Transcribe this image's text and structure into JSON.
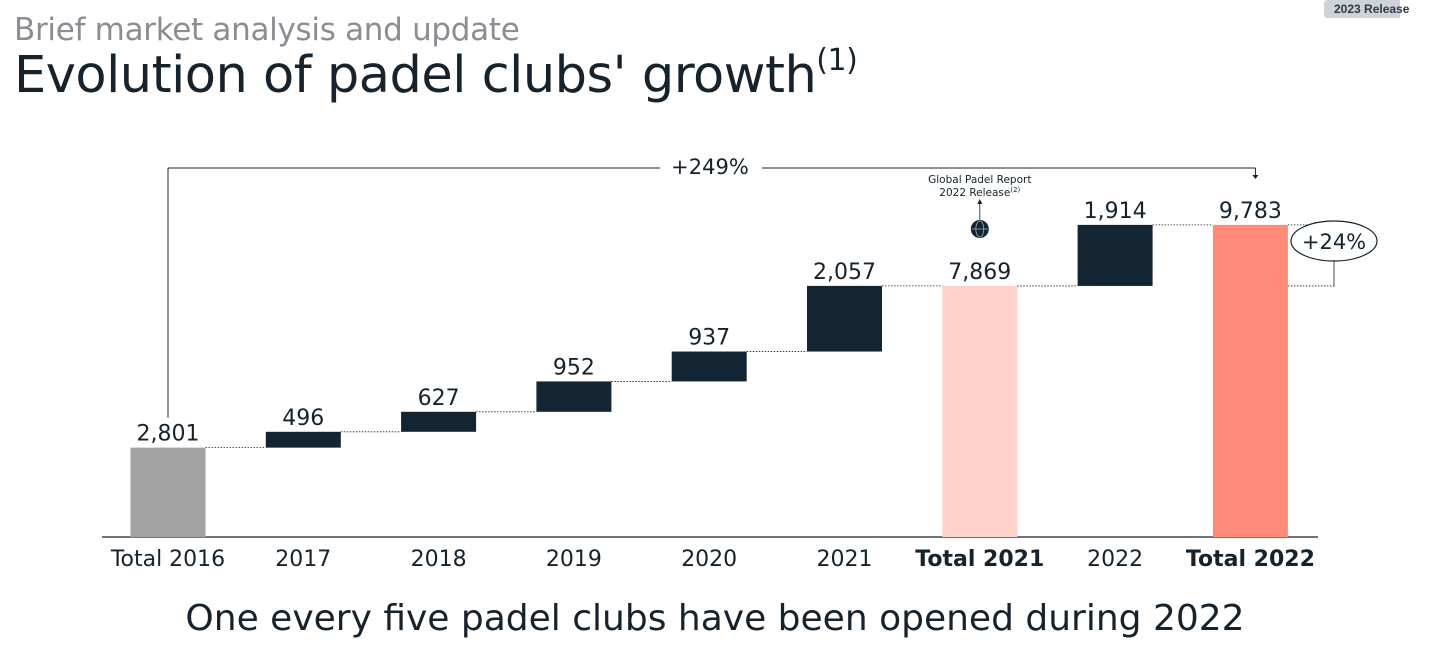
{
  "badge": "2023 Release",
  "header": {
    "subtitle": "Brief market analysis and update",
    "title": "Evolution of padel clubs' growth",
    "title_note": "(1)"
  },
  "footer": "One every five padel clubs have been opened during 2022",
  "chart_data": {
    "type": "bar",
    "subtype": "waterfall",
    "categories": [
      "Total 2016",
      "2017",
      "2018",
      "2019",
      "2020",
      "2021",
      "Total 2021",
      "2022",
      "Total 2022"
    ],
    "values": [
      2801,
      496,
      627,
      952,
      937,
      2057,
      7869,
      1914,
      9783
    ],
    "value_labels": [
      "2,801",
      "496",
      "627",
      "952",
      "937",
      "2,057",
      "7,869",
      "1,914",
      "9,783"
    ],
    "kinds": [
      "total",
      "increment",
      "increment",
      "increment",
      "increment",
      "increment",
      "total",
      "increment",
      "total"
    ],
    "bold_categories": [
      "Total 2021",
      "Total 2022"
    ],
    "colors": {
      "total_2016": "#a3a3a3",
      "increment": "#132532",
      "total_2021": "#ffd1ca",
      "total_2022": "#ff8b78",
      "text": "#16222c",
      "connector": "#16222c"
    },
    "annotations": {
      "overall_growth": "+249%",
      "last_year_growth": "+24%",
      "report_note_line1": "Global Padel Report",
      "report_note_line2": "2022 Release",
      "report_note_sup": "(2)"
    },
    "ylim": [
      0,
      10500
    ],
    "grid": false,
    "legend": "none"
  }
}
